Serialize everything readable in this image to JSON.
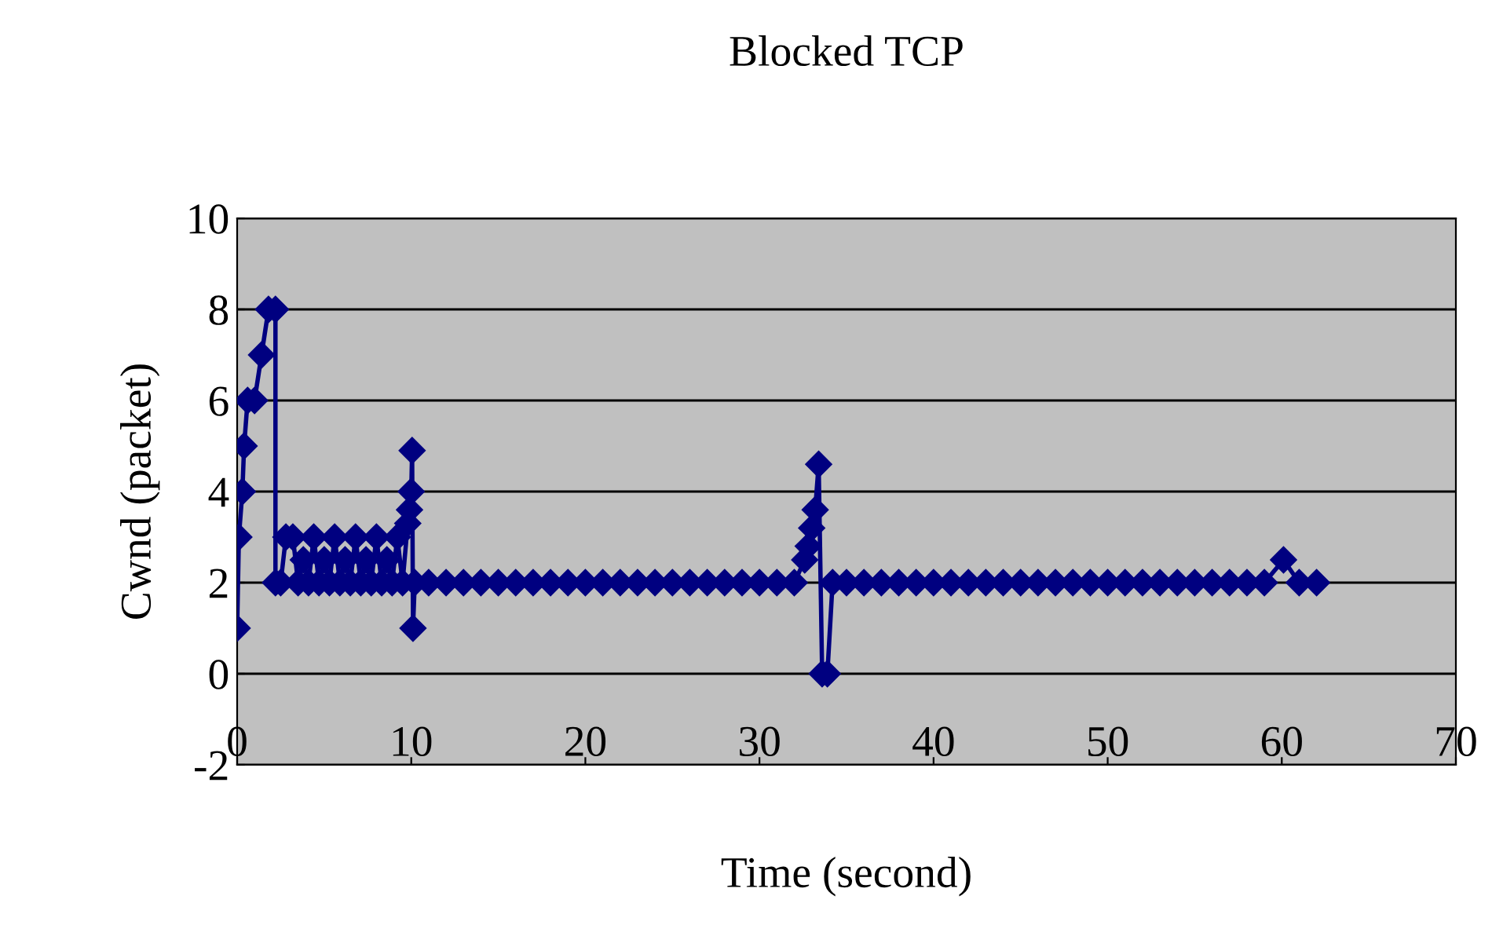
{
  "chart_data": {
    "type": "line",
    "title": "Blocked TCP",
    "xlabel": "Time (second)",
    "ylabel": "Cwnd (packet)",
    "xlim": [
      0,
      70
    ],
    "xticks": [
      0,
      10,
      20,
      30,
      40,
      50,
      60,
      70
    ],
    "ylim": [
      -2,
      10
    ],
    "yticks": [
      -2,
      0,
      2,
      4,
      6,
      8,
      10
    ],
    "grid": "y",
    "legend": false,
    "marker": "diamond",
    "line_style": "solid",
    "series": [
      {
        "color": "#000080",
        "x": [
          0,
          0.1,
          0.3,
          0.4,
          0.6,
          1.0,
          1.4,
          1.8,
          2.2,
          2.2,
          2.5,
          2.8,
          3.2,
          3.5,
          3.8,
          4.1,
          4.4,
          4.7,
          5.0,
          5.3,
          5.6,
          5.9,
          6.2,
          6.5,
          6.8,
          7.1,
          7.4,
          7.7,
          8.0,
          8.3,
          8.6,
          8.9,
          9.2,
          9.5,
          9.8,
          9.9,
          10.0,
          10.05,
          10.1,
          10.2,
          11,
          12,
          13,
          14,
          15,
          16,
          17,
          18,
          19,
          20,
          21,
          22,
          23,
          24,
          25,
          26,
          27,
          28,
          29,
          30,
          31,
          32,
          32.6,
          32.8,
          33.0,
          33.2,
          33.4,
          33.6,
          33.9,
          34.2,
          35,
          36,
          37,
          38,
          39,
          40,
          41,
          42,
          43,
          44,
          45,
          46,
          47,
          48,
          49,
          50,
          51,
          52,
          53,
          54,
          55,
          56,
          57,
          58,
          59,
          60.1,
          61,
          62
        ],
        "values": [
          1,
          3,
          4,
          5,
          6,
          6,
          7,
          8,
          8,
          2,
          2,
          3,
          3,
          2,
          2.5,
          2,
          3,
          2,
          2.5,
          2,
          3,
          2,
          2.5,
          2,
          3,
          2,
          2.5,
          2,
          3,
          2,
          2.5,
          2,
          3,
          2,
          3.3,
          3.6,
          4,
          4.9,
          1,
          2,
          2,
          2,
          2,
          2,
          2,
          2,
          2,
          2,
          2,
          2,
          2,
          2,
          2,
          2,
          2,
          2,
          2,
          2,
          2,
          2,
          2,
          2,
          2.5,
          2.8,
          3.2,
          3.6,
          4.6,
          0,
          0,
          2,
          2,
          2,
          2,
          2,
          2,
          2,
          2,
          2,
          2,
          2,
          2,
          2,
          2,
          2,
          2,
          2,
          2,
          2,
          2,
          2,
          2,
          2,
          2,
          2,
          2,
          2.5,
          2,
          2
        ]
      }
    ]
  }
}
